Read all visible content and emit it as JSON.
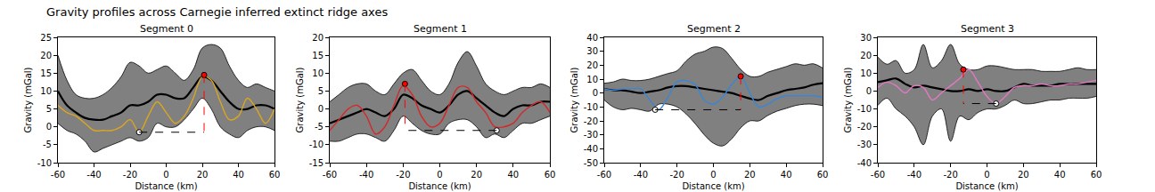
{
  "title": "Gravity profiles across Carnegie inferred extinct ridge axes",
  "chart_data": [
    {
      "type": "line",
      "title": "Segment 0",
      "x_label": "Distance (km)",
      "y_label": "Gravity (mGal)",
      "xlim": [
        -60,
        60
      ],
      "xticks": [
        -60,
        -40,
        -20,
        0,
        20,
        40,
        60
      ],
      "ylim": [
        -10,
        25
      ],
      "yticks": [
        -10,
        -5,
        0,
        5,
        10,
        15,
        20,
        25
      ],
      "x": [
        -60,
        -55,
        -50,
        -45,
        -40,
        -35,
        -30,
        -25,
        -20,
        -15,
        -10,
        -5,
        0,
        5,
        10,
        15,
        20,
        25,
        30,
        35,
        40,
        45,
        50,
        55,
        60
      ],
      "band": {
        "color": "#808080",
        "upper": [
          20,
          13,
          9,
          8,
          8,
          9,
          11,
          14,
          18,
          17,
          15,
          16,
          17,
          15,
          13,
          16,
          22,
          23,
          22,
          17,
          13,
          11,
          12,
          11,
          10
        ],
        "lower": [
          1,
          -1,
          -2,
          -4,
          -7,
          -6,
          -5,
          -4,
          -3,
          -4,
          -3,
          1,
          0,
          0,
          2,
          5,
          8,
          5,
          0,
          -2,
          -3,
          -1,
          0,
          0,
          -1
        ]
      },
      "series": [
        {
          "color": "#000000",
          "values": [
            10,
            6,
            4,
            2.5,
            2,
            2,
            3,
            4,
            6,
            6,
            7,
            9,
            9,
            8,
            8,
            11,
            14,
            13,
            10,
            7,
            5,
            5,
            6,
            6,
            5
          ]
        },
        {
          "color": "#daa520",
          "values": [
            6,
            4,
            3,
            1,
            -1,
            -1,
            -1,
            0,
            2,
            -1.5,
            3,
            7,
            4,
            1,
            3,
            8,
            14,
            13,
            7,
            2,
            3,
            8,
            5,
            1,
            5
          ]
        }
      ],
      "points": [
        {
          "x": 21,
          "y": 14.5,
          "color": "red",
          "marker": "circle"
        },
        {
          "x": -15,
          "y": -1.5,
          "color": "white",
          "marker": "circle"
        }
      ],
      "line_style": "dashed"
    },
    {
      "type": "line",
      "title": "Segment 1",
      "x_label": "Distance (km)",
      "y_label": "Gravity (mGal)",
      "xlim": [
        -60,
        60
      ],
      "xticks": [
        -60,
        -40,
        -20,
        0,
        20,
        40,
        60
      ],
      "ylim": [
        -15,
        20
      ],
      "yticks": [
        -15,
        -10,
        -5,
        0,
        5,
        10,
        15,
        20
      ],
      "x": [
        -60,
        -55,
        -50,
        -45,
        -40,
        -35,
        -30,
        -25,
        -20,
        -15,
        -10,
        -5,
        0,
        5,
        10,
        15,
        20,
        25,
        30,
        35,
        40,
        45,
        50,
        55,
        60
      ],
      "band": {
        "color": "#808080",
        "upper": [
          2,
          4,
          6,
          7,
          7,
          5,
          4,
          7,
          10,
          11,
          8,
          5,
          4,
          7,
          13,
          16,
          12,
          7,
          5,
          4,
          5,
          6,
          6,
          7,
          6
        ],
        "lower": [
          -9,
          -9,
          -8,
          -7,
          -7,
          -8,
          -9,
          -6,
          -2,
          -4,
          -6,
          -7,
          -7,
          -4,
          -3,
          -3,
          -5,
          -8,
          -7,
          -8,
          -6,
          -4,
          -4,
          -3,
          -2
        ]
      },
      "series": [
        {
          "color": "#000000",
          "values": [
            -4,
            -3,
            -2,
            -1,
            0,
            -1,
            -2,
            0,
            4,
            3,
            1,
            0,
            -1,
            1,
            4,
            5,
            3,
            1,
            -1,
            -2,
            0,
            1,
            1,
            2,
            2
          ]
        },
        {
          "color": "#d62728",
          "values": [
            -6,
            -3,
            0,
            1,
            -2,
            -7,
            -5,
            1,
            6.5,
            4,
            -2,
            -5,
            -4,
            1,
            6,
            6,
            2,
            -1,
            -5,
            -5,
            -4,
            -1,
            1,
            2,
            -1
          ]
        }
      ],
      "points": [
        {
          "x": -19,
          "y": 7,
          "color": "red",
          "marker": "circle"
        },
        {
          "x": 31,
          "y": -6,
          "color": "white",
          "marker": "circle"
        }
      ],
      "line_style": "dashed"
    },
    {
      "type": "line",
      "title": "Segment 2",
      "x_label": "Distance (km)",
      "y_label": "Gravity (mGal)",
      "xlim": [
        -60,
        60
      ],
      "xticks": [
        -60,
        -40,
        -20,
        0,
        20,
        40,
        60
      ],
      "ylim": [
        -50,
        40
      ],
      "yticks": [
        -50,
        -40,
        -30,
        -20,
        -10,
        0,
        10,
        20,
        30,
        40
      ],
      "x": [
        -60,
        -55,
        -50,
        -45,
        -40,
        -35,
        -30,
        -25,
        -20,
        -15,
        -10,
        -5,
        0,
        5,
        10,
        15,
        20,
        25,
        30,
        35,
        40,
        45,
        50,
        55,
        60
      ],
      "band": {
        "color": "#808080",
        "upper": [
          7,
          8,
          10,
          9,
          9,
          10,
          12,
          14,
          16,
          23,
          28,
          30,
          33,
          32,
          25,
          17,
          12,
          12,
          15,
          17,
          19,
          21,
          20,
          21,
          18
        ],
        "lower": [
          -5,
          -10,
          -12,
          -11,
          -12,
          -13,
          -8,
          -8,
          -10,
          -15,
          -22,
          -30,
          -36,
          -38,
          -33,
          -25,
          -20,
          -20,
          -16,
          -13,
          -11,
          -9,
          -8,
          -8,
          -9
        ]
      },
      "series": [
        {
          "color": "#000000",
          "values": [
            3,
            2,
            2,
            1,
            0,
            1,
            2,
            4,
            5,
            5,
            4,
            3,
            2,
            1,
            0,
            -2,
            -4,
            -5,
            -2,
            0,
            2,
            3,
            4,
            6,
            7
          ]
        },
        {
          "color": "#3a86d4",
          "values": [
            3,
            2,
            3,
            3,
            3,
            -5,
            -12,
            -3,
            8,
            9,
            6,
            -5,
            -8,
            -3,
            6,
            12,
            0,
            -10,
            -8,
            -4,
            -2,
            -2,
            -2,
            -2,
            -3
          ]
        }
      ],
      "points": [
        {
          "x": 15,
          "y": 12,
          "color": "red",
          "marker": "circle"
        },
        {
          "x": -32,
          "y": -12,
          "color": "white",
          "marker": "circle"
        }
      ],
      "line_style": "dashed"
    },
    {
      "type": "line",
      "title": "Segment 3",
      "x_label": "Distance (km)",
      "y_label": "Gravity (mGal)",
      "xlim": [
        -60,
        60
      ],
      "xticks": [
        -60,
        -40,
        -20,
        0,
        20,
        40,
        60
      ],
      "ylim": [
        -40,
        30
      ],
      "yticks": [
        -40,
        -30,
        -20,
        -10,
        0,
        10,
        20,
        30
      ],
      "x": [
        -60,
        -55,
        -50,
        -45,
        -40,
        -35,
        -30,
        -25,
        -20,
        -15,
        -10,
        -5,
        0,
        5,
        10,
        15,
        20,
        25,
        30,
        35,
        40,
        45,
        50,
        55,
        60
      ],
      "band": {
        "color": "#808080",
        "upper": [
          19,
          15,
          17,
          10,
          12,
          26,
          13,
          17,
          26,
          15,
          12,
          12,
          14,
          14,
          13,
          12,
          12,
          12,
          11,
          11,
          11,
          12,
          13,
          12,
          12
        ],
        "lower": [
          -8,
          -4,
          -10,
          -14,
          -20,
          -30,
          -14,
          -10,
          -28,
          -14,
          -16,
          -12,
          -10,
          -10,
          -8,
          -5,
          -7,
          -7,
          -6,
          -5,
          -5,
          -4,
          -4,
          -4,
          -3
        ]
      },
      "series": [
        {
          "color": "#000000",
          "values": [
            5,
            6,
            7,
            4,
            2,
            3,
            2,
            1,
            0,
            0,
            1,
            0,
            1,
            0,
            0,
            2,
            4,
            3,
            3,
            3,
            4,
            4,
            4,
            4,
            4
          ]
        },
        {
          "color": "#e377c2",
          "values": [
            2,
            5,
            3,
            -1,
            3,
            2,
            -5,
            -1,
            3,
            7,
            12,
            5,
            -3,
            -7,
            -3,
            2,
            3,
            3,
            4,
            3,
            3,
            4,
            4,
            5,
            6
          ]
        }
      ],
      "points": [
        {
          "x": -13,
          "y": 12,
          "color": "red",
          "marker": "circle"
        },
        {
          "x": 5,
          "y": -7,
          "color": "white",
          "marker": "circle"
        }
      ],
      "line_style": "dashed"
    }
  ]
}
